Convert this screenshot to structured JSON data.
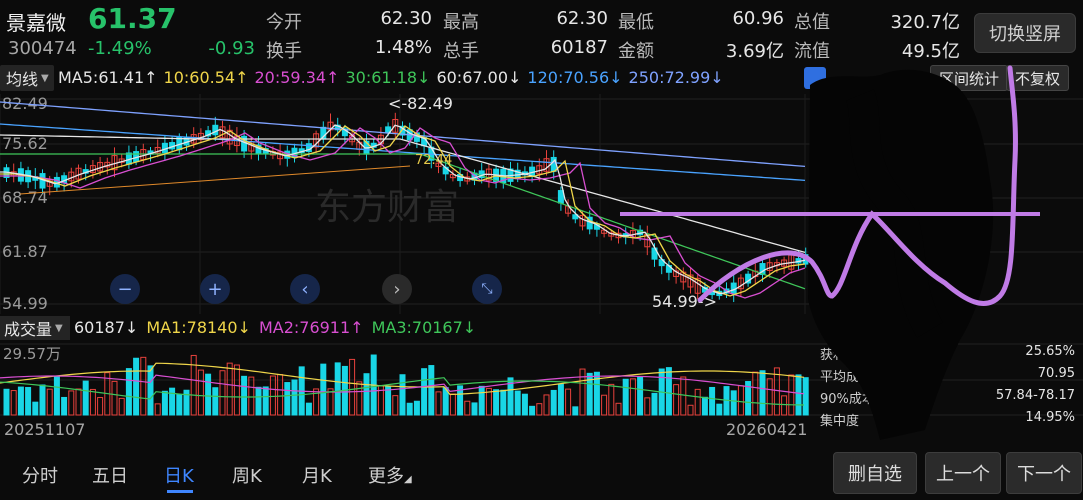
{
  "stock": {
    "name": "景嘉微",
    "code": "300474",
    "price": "61.37",
    "change_pct": "-1.49%",
    "change": "-0.93"
  },
  "quote": {
    "open_k": "今开",
    "open_v": "62.30",
    "high_k": "最高",
    "high_v": "62.30",
    "low_k": "最低",
    "low_v": "60.96",
    "total_mv_k": "总值",
    "total_mv_v": "320.7亿",
    "turnover_k": "换手",
    "turnover_v": "1.48%",
    "volume_k": "总手",
    "volume_v": "60187",
    "amount_k": "金额",
    "amount_v": "3.69亿",
    "float_mv_k": "流值",
    "float_mv_v": "49.5亿"
  },
  "buttons": {
    "switch_vertical": "切换竖屏",
    "interval_stats": "区间统计",
    "no_adjust": "不复权",
    "remove_watch": "删自选",
    "prev": "上一个",
    "next": "下一个"
  },
  "ma_line": {
    "label": "均线",
    "ma5": "MA5:61.41↑",
    "ma10": "10:60.54↑",
    "ma20": "20:59.34↑",
    "ma30": "30:61.18↓",
    "ma60": "60:67.00↓",
    "ma120": "120:70.56↓",
    "ma250": "250:72.99↓"
  },
  "colors": {
    "ma5": "#e6e6e6",
    "ma10": "#f0d64a",
    "ma20": "#d84fd1",
    "ma30": "#3fc65a",
    "ma60": "#e6e6e6",
    "ma120": "#4aa3ff",
    "ma250": "#7fa2ff",
    "up": "#e8423c",
    "down": "#19d6e6",
    "annot": "#c07be6"
  },
  "kchart": {
    "y_labels": [
      "82.49",
      "75.62",
      "68.74",
      "61.87",
      "54.99"
    ],
    "max_label": "<-82.49",
    "min_label": "54.99->",
    "mid_label": "72.44",
    "watermark": "东方财富"
  },
  "volume": {
    "label": "成交量",
    "vol": "60187↓",
    "ma1": "MA1:78140↓",
    "ma2": "MA2:76911↑",
    "ma3": "MA3:70167↓",
    "y_label": "29.57万",
    "date_start": "20251107",
    "date_end": "20260421"
  },
  "chip": {
    "row1_k": "获利",
    "row1_v": "25.65%",
    "row2_k": "平均成本",
    "row2_v": "70.95",
    "row3_k": "90%成本",
    "row3_v": "57.84-78.17",
    "row4_k": "集中度",
    "row4_v": "14.95%"
  },
  "nav": {
    "items": [
      "分时",
      "五日",
      "日K",
      "周K",
      "月K",
      "更多"
    ],
    "active_index": 2
  }
}
